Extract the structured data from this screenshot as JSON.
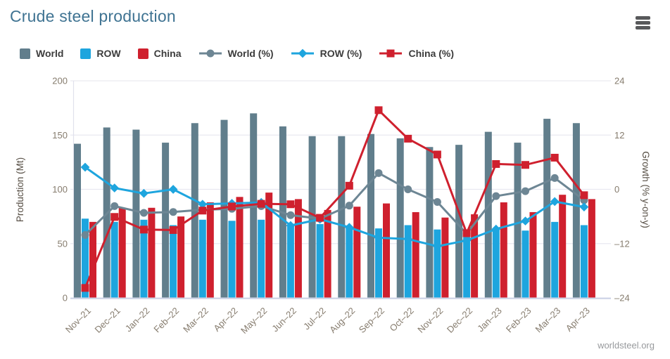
{
  "header": {
    "title": "Crude steel production"
  },
  "footer": {
    "source": "worldsteel.org"
  },
  "colors": {
    "world_bar": "#617e8c",
    "row_bar": "#1ea5de",
    "china_bar": "#cf202e",
    "world_line": "#6d8694",
    "row_line": "#1ea5de",
    "china_line": "#cf202e",
    "grid": "#e9e9f1",
    "axis_bottom": "#ccd2e6",
    "axis_left": "#e0e1ec",
    "tick_text": "#867c6e",
    "axis_title_text": "#564e44",
    "title_text": "#3f7392",
    "legend_text": "#3c3c3c",
    "footer_text": "#97999c",
    "menu_icon": "#58595b"
  },
  "chart_data": {
    "type": "combo (grouped bar + line)",
    "title": "Crude steel production",
    "categories": [
      "Nov–21",
      "Dec–21",
      "Jan–22",
      "Feb–22",
      "Mar–22",
      "Apr–22",
      "May–22",
      "Jun–22",
      "Jul–22",
      "Aug–22",
      "Sep–22",
      "Oct–22",
      "Nov–22",
      "Dec–22",
      "Jan–23",
      "Feb–23",
      "Mar–23",
      "Apr–23"
    ],
    "series": [
      {
        "name": "World",
        "type": "bar",
        "axis": "left",
        "color": "#617e8c",
        "values": [
          142,
          157,
          155,
          143,
          161,
          164,
          170,
          158,
          149,
          149,
          151,
          147,
          139,
          141,
          153,
          143,
          165,
          161
        ]
      },
      {
        "name": "ROW",
        "type": "bar",
        "axis": "left",
        "color": "#1ea5de",
        "values": [
          73,
          70,
          72,
          67,
          72,
          71,
          72,
          67,
          68,
          66,
          64,
          67,
          63,
          56,
          64,
          62,
          70,
          67
        ]
      },
      {
        "name": "China",
        "type": "bar",
        "axis": "left",
        "color": "#cf202e",
        "values": [
          70,
          83,
          83,
          75,
          88,
          93,
          97,
          91,
          81,
          84,
          87,
          79,
          74,
          77,
          88,
          79,
          95,
          91
        ]
      },
      {
        "name": "World (%)",
        "type": "line",
        "marker": "circle",
        "axis": "right",
        "color": "#6d8694",
        "values": [
          -10.1,
          -3.7,
          -5.2,
          -5.0,
          -4.5,
          -4.3,
          -3.7,
          -5.7,
          -6.5,
          -3.6,
          3.6,
          0,
          -2.8,
          -9.8,
          -1.5,
          -0.4,
          2.5,
          -2.4
        ]
      },
      {
        "name": "ROW (%)",
        "type": "line",
        "marker": "diamond",
        "axis": "right",
        "color": "#1ea5de",
        "values": [
          4.9,
          0.3,
          -0.9,
          0,
          -3.3,
          -3.1,
          -2.9,
          -8.0,
          -6.6,
          -8.4,
          -10.7,
          -11.0,
          -12.6,
          -11.3,
          -8.8,
          -7.0,
          -2.7,
          -3.9
        ]
      },
      {
        "name": "China (%)",
        "type": "line",
        "marker": "square",
        "axis": "right",
        "color": "#cf202e",
        "values": [
          -21.8,
          -6.1,
          -8.9,
          -9.0,
          -4.7,
          -3.8,
          -3.2,
          -3.3,
          -6.3,
          0.8,
          17.5,
          11.2,
          7.7,
          -9.7,
          5.6,
          5.4,
          7.0,
          -1.3
        ]
      }
    ],
    "left_axis": {
      "title": "Production (Mt)",
      "ticks": [
        0,
        50,
        100,
        150,
        200
      ],
      "range": [
        0,
        200
      ]
    },
    "right_axis": {
      "title": "Growth (% y-on-y)",
      "ticks": [
        24,
        12,
        0,
        -12,
        -24
      ],
      "range": [
        -24,
        24
      ]
    },
    "grid": "horizontal only",
    "legend_position": "top-left",
    "x_label_rotation": -45
  }
}
